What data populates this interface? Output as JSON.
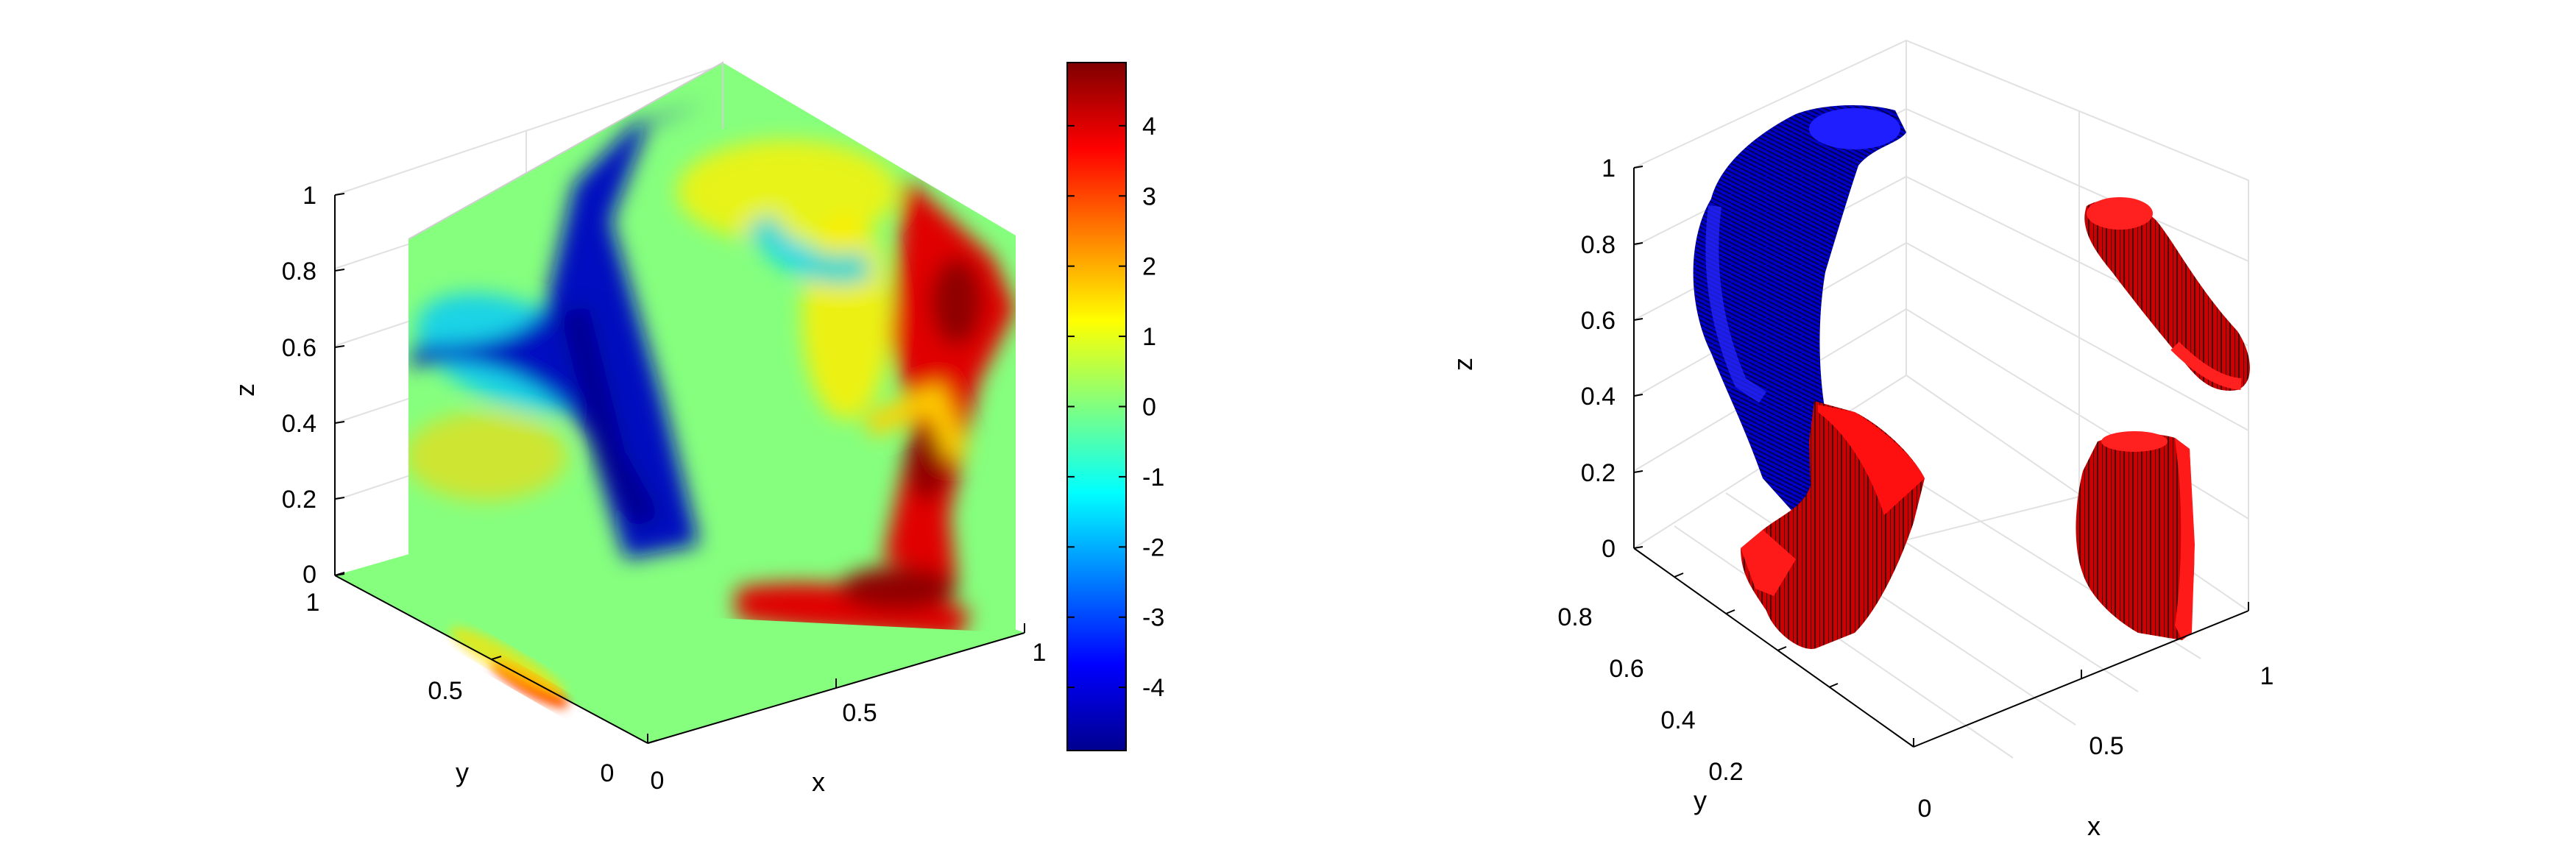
{
  "chart_data": [
    {
      "type": "slice-3d",
      "title": "",
      "xlabel": "x",
      "ylabel": "y",
      "zlabel": "z",
      "xlim": [
        0,
        1
      ],
      "ylim": [
        0,
        1
      ],
      "zlim": [
        0,
        1
      ],
      "x_ticks": [
        "0",
        "0.5",
        "1"
      ],
      "y_ticks": [
        "0",
        "0.5",
        "1"
      ],
      "z_ticks": [
        "0",
        "0.2",
        "0.4",
        "0.6",
        "0.8",
        "1"
      ],
      "colormap": "jet",
      "colorbar": {
        "clim": [
          -4.9,
          4.9
        ],
        "ticks": [
          4,
          3,
          2,
          1,
          0,
          -1,
          -2,
          -3,
          -4
        ],
        "labels": [
          "4",
          "3",
          "2",
          "1",
          "0",
          "-1",
          "-2",
          "-3",
          "-4"
        ]
      },
      "grid": true
    },
    {
      "type": "isosurface-3d",
      "title": "",
      "xlabel": "x",
      "ylabel": "y",
      "zlabel": "z",
      "xlim": [
        0,
        1
      ],
      "ylim": [
        0.1,
        0.9
      ],
      "zlim": [
        0,
        1
      ],
      "x_ticks": [
        "0",
        "0.5",
        "1"
      ],
      "y_ticks": [
        "0.2",
        "0.4",
        "0.6",
        "0.8"
      ],
      "z_ticks": [
        "0",
        "0.2",
        "0.4",
        "0.6",
        "0.8",
        "1"
      ],
      "surface_colors": {
        "positive": "#ff0000",
        "negative": "#0000ff"
      },
      "grid": true
    }
  ]
}
